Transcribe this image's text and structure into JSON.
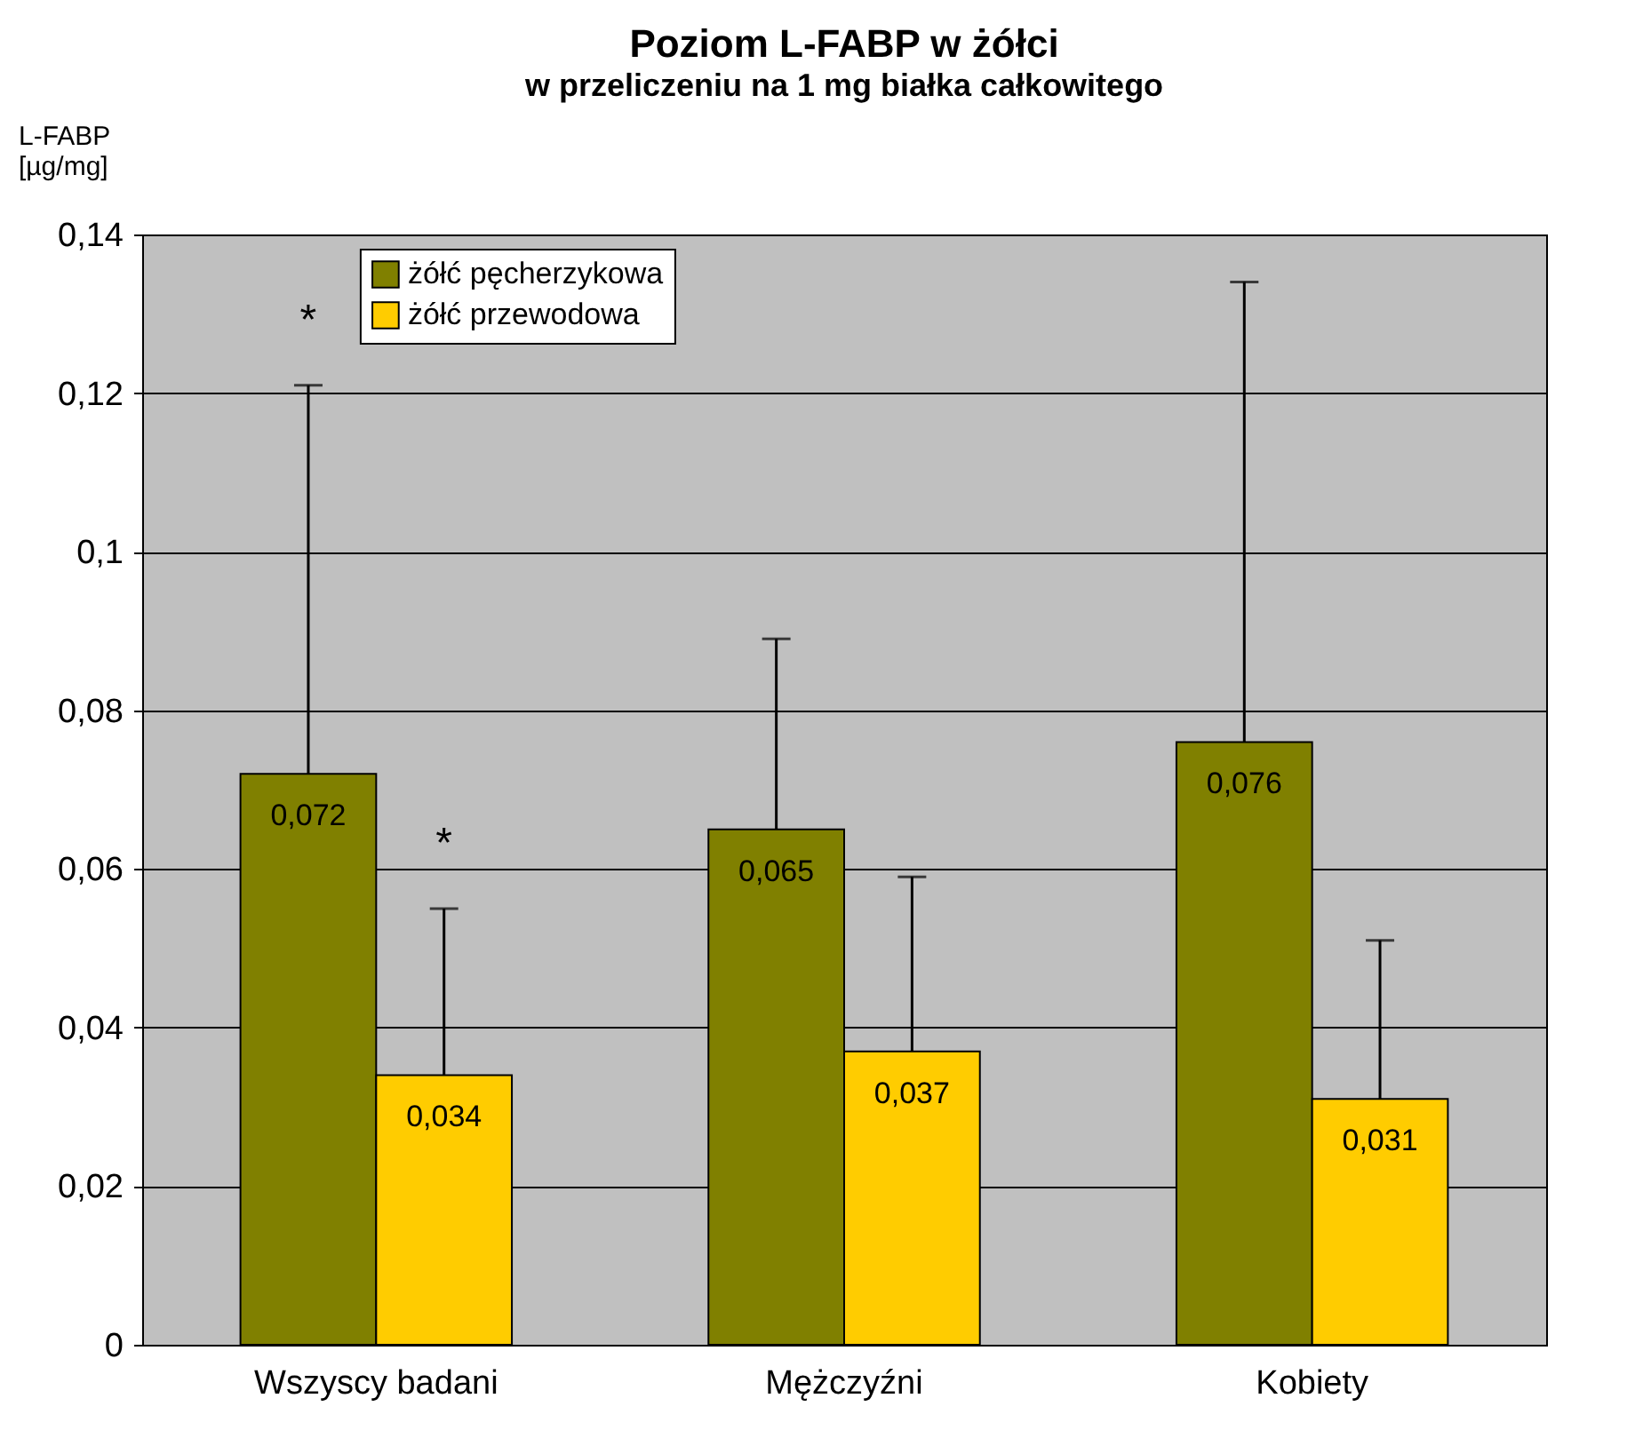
{
  "chart_data": {
    "type": "bar",
    "title": "Poziom L-FABP w żółci",
    "subtitle": "w przeliczeniu na 1 mg białka całkowitego",
    "ylabel": "L-FABP\n[µg/mg]",
    "categories": [
      "Wszyscy badani",
      "Mężczyźni",
      "Kobiety"
    ],
    "series": [
      {
        "name": "żółć pęcherzykowa",
        "color": "#808000",
        "values": [
          0.072,
          0.065,
          0.076
        ],
        "errors": [
          [
            0.072,
            0.121
          ],
          [
            0.065,
            0.089
          ],
          [
            0.076,
            0.134
          ]
        ]
      },
      {
        "name": "żółć przewodowa",
        "color": "#ffcc00",
        "values": [
          0.034,
          0.037,
          0.031
        ],
        "errors": [
          [
            0.034,
            0.055
          ],
          [
            0.037,
            0.059
          ],
          [
            0.031,
            0.051
          ]
        ]
      }
    ],
    "ylim": [
      0,
      0.14
    ],
    "yticks": [
      {
        "value": 0,
        "label": "0"
      },
      {
        "value": 0.02,
        "label": "0,02"
      },
      {
        "value": 0.04,
        "label": "0,04"
      },
      {
        "value": 0.06,
        "label": "0,06"
      },
      {
        "value": 0.08,
        "label": "0,08"
      },
      {
        "value": 0.1,
        "label": "0,1"
      },
      {
        "value": 0.12,
        "label": "0,12"
      },
      {
        "value": 0.14,
        "label": "0,14"
      }
    ],
    "value_labels": [
      [
        "0,072",
        "0,065",
        "0,076"
      ],
      [
        "0,034",
        "0,037",
        "0,031"
      ]
    ],
    "annotations": [
      "*",
      "*"
    ],
    "grid": "y",
    "legend": "top left"
  }
}
